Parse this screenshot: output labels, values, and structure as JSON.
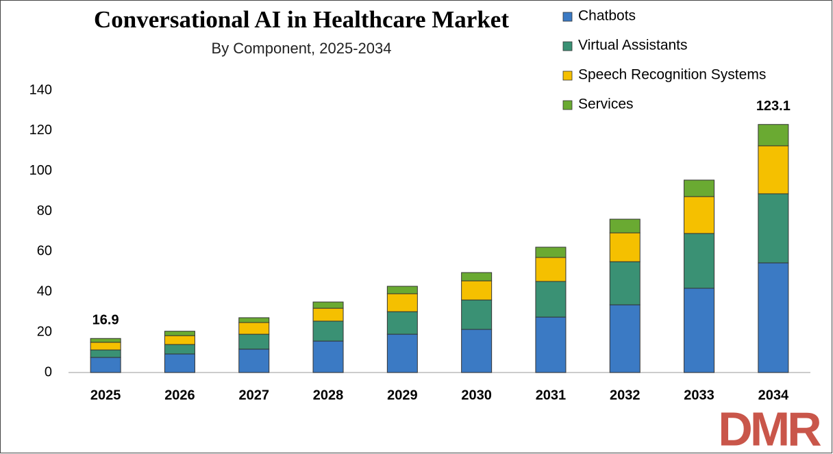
{
  "chart_data": {
    "type": "stacked-bar",
    "title": "Conversational AI in Healthcare Market",
    "subtitle": "By Component, 2025-2034",
    "categories": [
      "2025",
      "2026",
      "2027",
      "2028",
      "2029",
      "2030",
      "2031",
      "2032",
      "2033",
      "2034"
    ],
    "series": [
      {
        "name": "Chatbots",
        "color": "#3b7ac4",
        "values": [
          7.5,
          9.2,
          11.6,
          15.6,
          19.0,
          21.4,
          27.5,
          33.6,
          41.8,
          54.4
        ]
      },
      {
        "name": "Virtual Assistants",
        "color": "#3a9174",
        "values": [
          3.7,
          4.7,
          7.4,
          9.9,
          11.2,
          14.6,
          17.7,
          21.4,
          27.2,
          34.3
        ]
      },
      {
        "name": "Speech Recognition Systems",
        "color": "#f5c000",
        "values": [
          3.8,
          4.4,
          5.8,
          6.4,
          8.9,
          9.5,
          11.9,
          14.3,
          18.3,
          23.8
        ]
      },
      {
        "name": "Services",
        "color": "#6aaa32",
        "values": [
          1.9,
          2.2,
          2.4,
          3.1,
          3.7,
          4.1,
          5.1,
          6.8,
          8.2,
          10.6
        ]
      }
    ],
    "totals": [
      16.9,
      null,
      null,
      null,
      null,
      null,
      null,
      null,
      null,
      123.1
    ],
    "ylim": [
      0,
      140
    ],
    "yticks": [
      0,
      20,
      40,
      60,
      80,
      100,
      120,
      140
    ],
    "legend": "top-right",
    "logo": "DMR"
  }
}
